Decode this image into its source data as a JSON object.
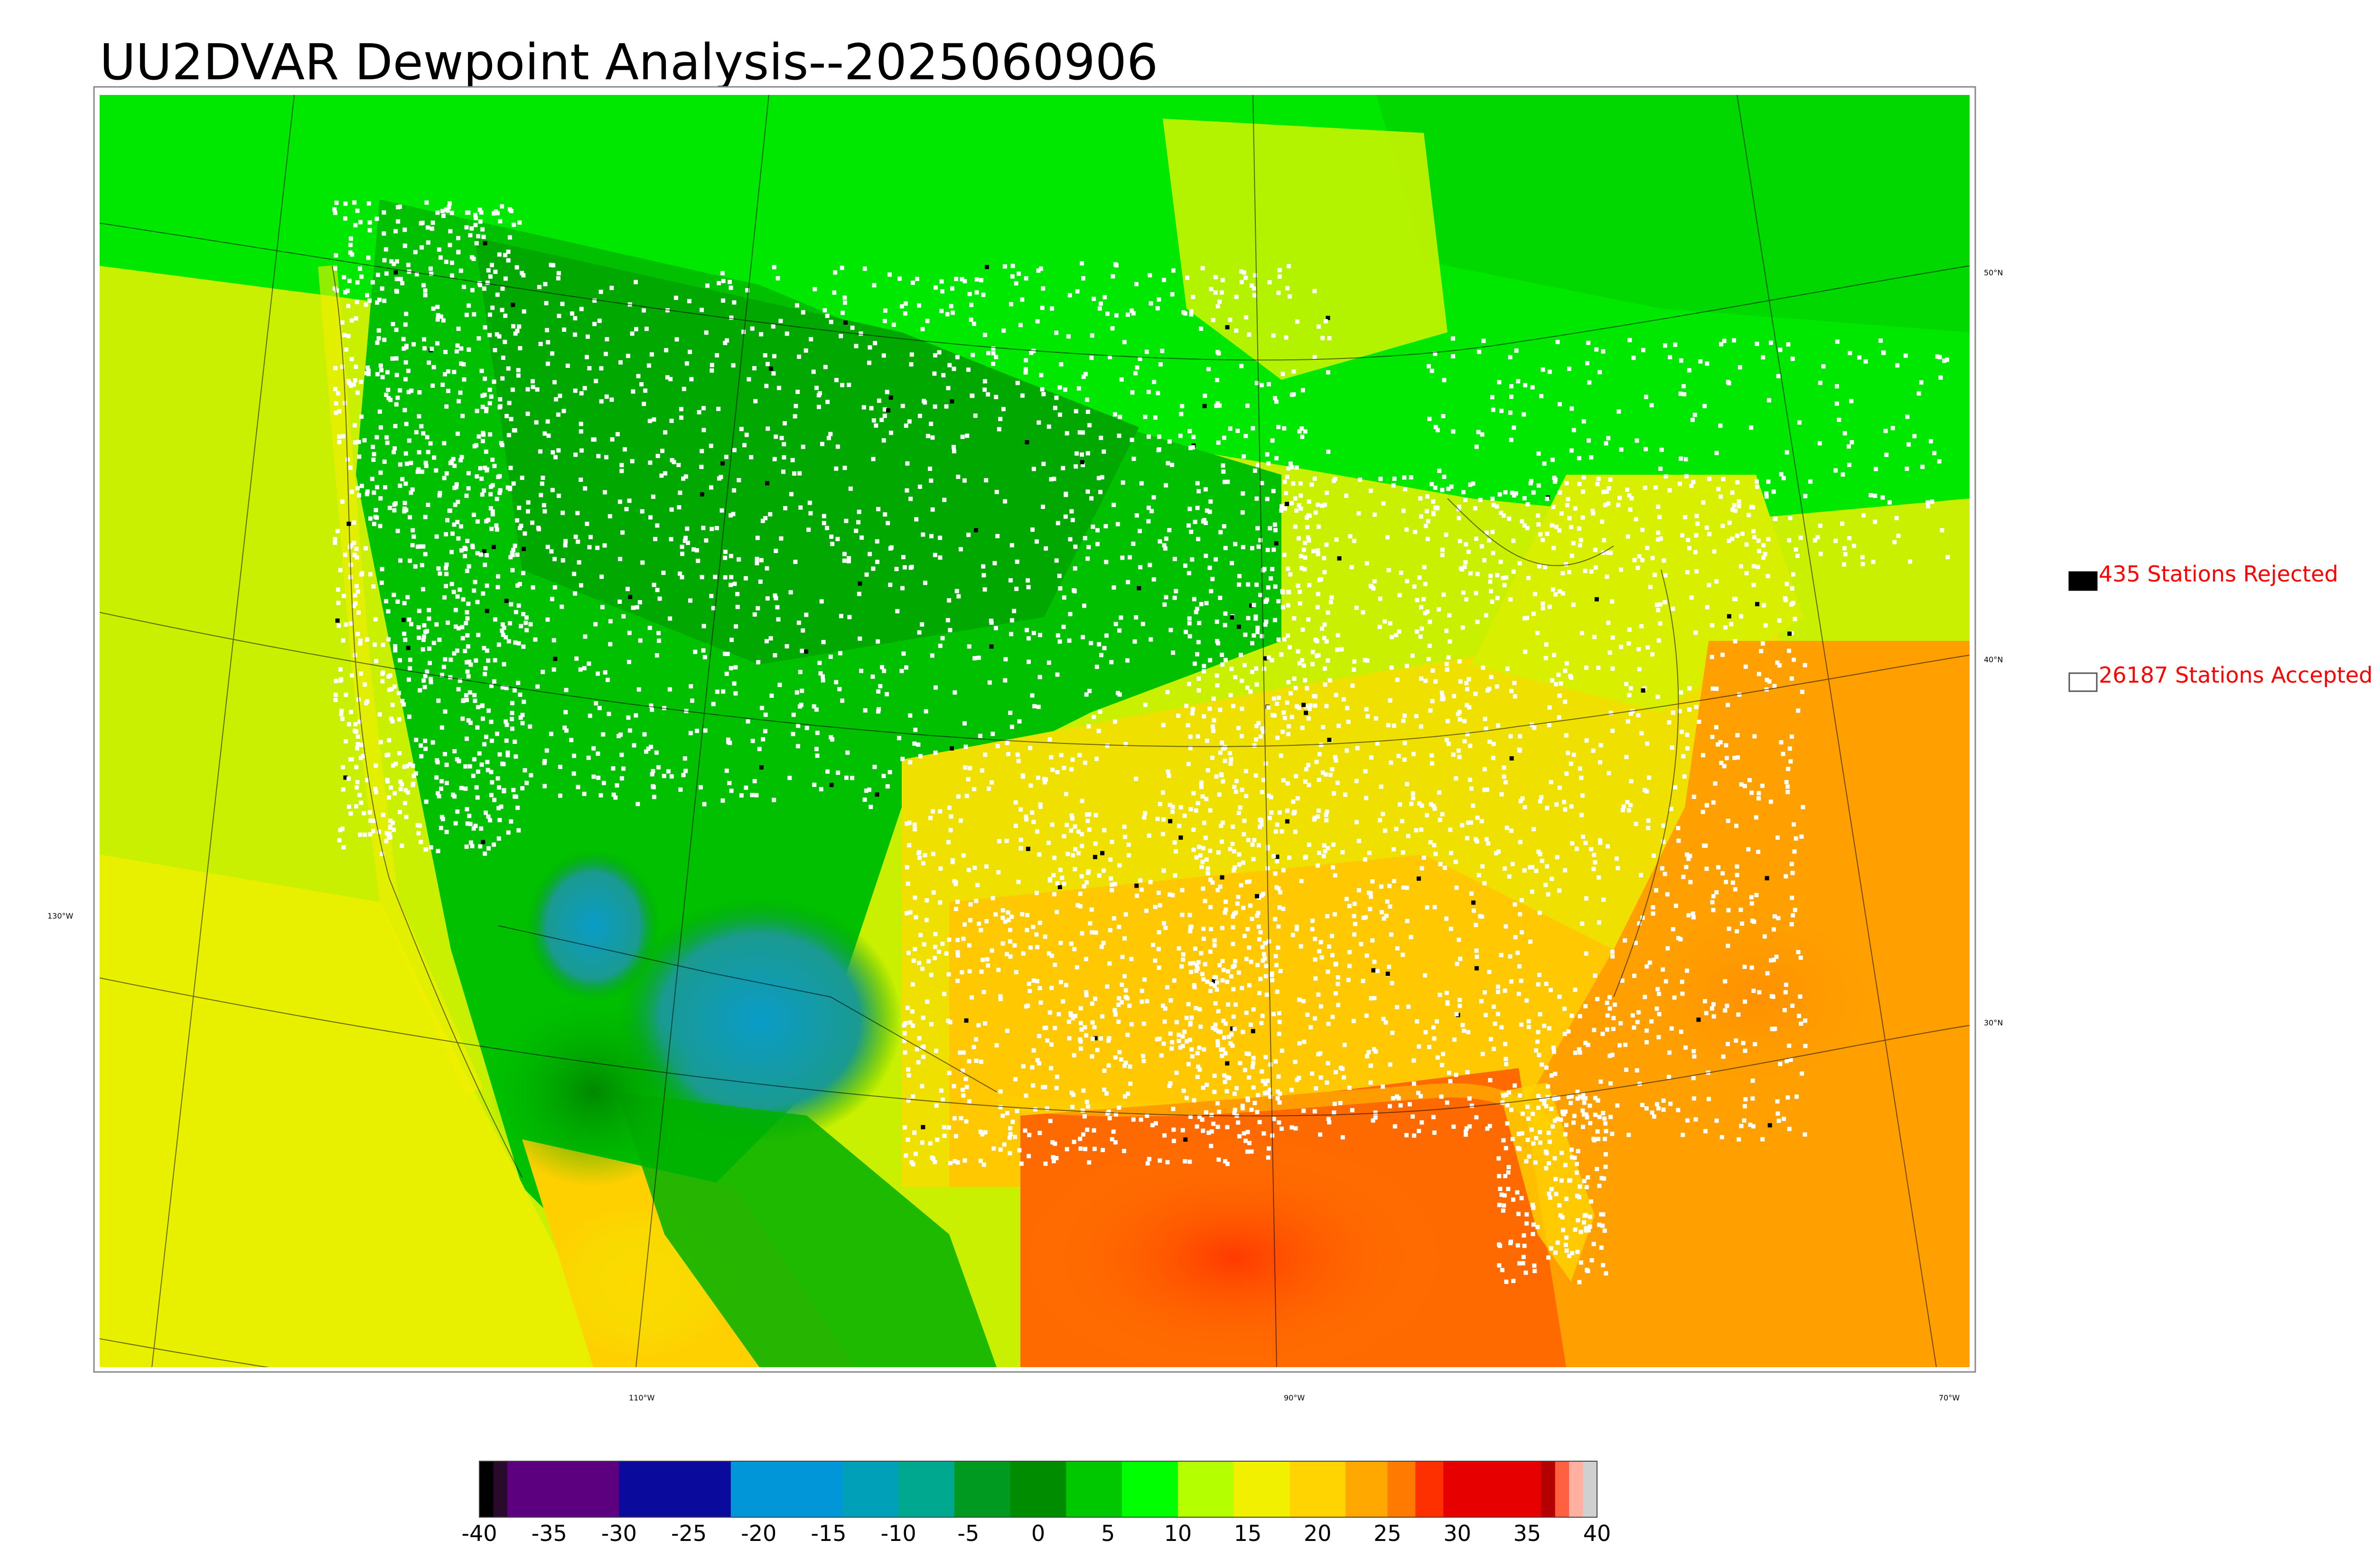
{
  "title": "UU2DVAR Dewpoint Analysis--2025060906",
  "map": {
    "latitude_labels": [
      "50°N",
      "40°N",
      "30°N"
    ],
    "longitude_labels": [
      "130°W",
      "110°W",
      "90°W",
      "70°W"
    ]
  },
  "legend": {
    "rejected": {
      "label": "435 Stations Rejected",
      "count": 435,
      "marker_color": "#000000"
    },
    "accepted": {
      "label": "26187 Stations Accepted",
      "count": 26187,
      "marker_color": "#ffffff"
    },
    "text_color": "#ff0000"
  },
  "colorbar": {
    "tick_labels": [
      "-40",
      "-35",
      "-30",
      "-25",
      "-20",
      "-15",
      "-10",
      "-5",
      "0",
      "5",
      "10",
      "15",
      "20",
      "25",
      "30",
      "35",
      "40"
    ],
    "min": -40,
    "max": 40,
    "colors": [
      {
        "from": -40,
        "to": -39,
        "color": "#000000"
      },
      {
        "from": -39,
        "to": -38,
        "color": "#2a0a2a"
      },
      {
        "from": -38,
        "to": -30,
        "color": "#5c0080"
      },
      {
        "from": -30,
        "to": -22,
        "color": "#0a0a9c"
      },
      {
        "from": -22,
        "to": -14,
        "color": "#0096d8"
      },
      {
        "from": -14,
        "to": -10,
        "color": "#00a0b8"
      },
      {
        "from": -10,
        "to": -6,
        "color": "#00a890"
      },
      {
        "from": -6,
        "to": -2,
        "color": "#009a20"
      },
      {
        "from": -2,
        "to": 2,
        "color": "#008c00"
      },
      {
        "from": 2,
        "to": 6,
        "color": "#00c800"
      },
      {
        "from": 6,
        "to": 10,
        "color": "#00ff00"
      },
      {
        "from": 10,
        "to": 14,
        "color": "#b4ff00"
      },
      {
        "from": 14,
        "to": 18,
        "color": "#f0f000"
      },
      {
        "from": 18,
        "to": 22,
        "color": "#ffd400"
      },
      {
        "from": 22,
        "to": 25,
        "color": "#ffa800"
      },
      {
        "from": 25,
        "to": 27,
        "color": "#ff7a00"
      },
      {
        "from": 27,
        "to": 29,
        "color": "#ff3000"
      },
      {
        "from": 29,
        "to": 36,
        "color": "#e60000"
      },
      {
        "from": 36,
        "to": 37,
        "color": "#b40000"
      },
      {
        "from": 37,
        "to": 38,
        "color": "#ff6040"
      },
      {
        "from": 38,
        "to": 39,
        "color": "#ffb0a0"
      },
      {
        "from": 39,
        "to": 40,
        "color": "#d0d0d0"
      }
    ]
  },
  "colors": {
    "ocean_pacific": "#c8f000",
    "ocean_atlantic_south": "#ffa000",
    "gulf": "#ff6a00",
    "west_dry": "#00c000",
    "canada": "#00e800",
    "southwest_dry": "#1a9ad0",
    "east_humid": "#f0e000"
  }
}
